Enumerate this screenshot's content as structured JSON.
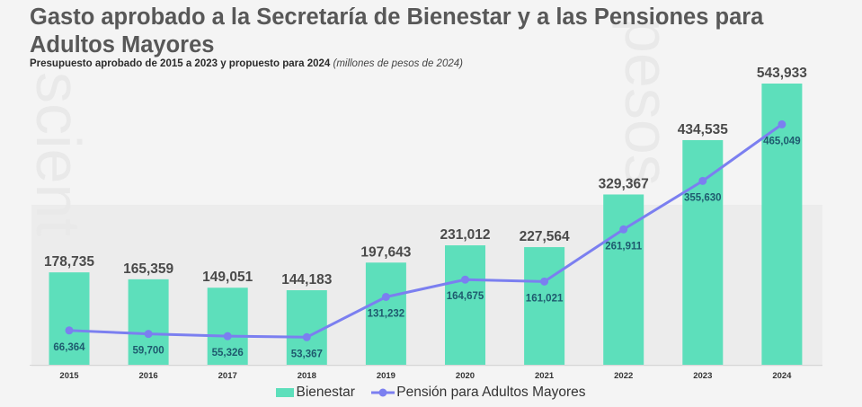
{
  "header": {
    "title": "Gasto aprobado a la Secretaría de Bienestar y a las Pensiones para Adultos Mayores",
    "subtitle_bold": "Presupuesto aprobado de 2015 a 2023 y propuesto para 2024",
    "subtitle_italic": "(millones de pesos de 2024)"
  },
  "colors": {
    "bar": "#5ddfbb",
    "line": "#7b7ff0",
    "bar_label": "#4a4a4a",
    "line_label": "#1e5a6e"
  },
  "chart_data": {
    "type": "bar",
    "title": "Gasto aprobado a la Secretaría de Bienestar y a las Pensiones para Adultos Mayores",
    "subtitle": "Presupuesto aprobado de 2015 a 2023 y propuesto para 2024 (millones de pesos de 2024)",
    "xlabel": "",
    "ylabel": "",
    "ylim": [
      0,
      543933
    ],
    "grid": false,
    "legend_position": "bottom",
    "categories": [
      "2015",
      "2016",
      "2017",
      "2018",
      "2019",
      "2020",
      "2021",
      "2022",
      "2023",
      "2024"
    ],
    "series": [
      {
        "name": "Bienestar",
        "type": "bar",
        "values": [
          178735,
          165359,
          149051,
          144183,
          197643,
          231012,
          227564,
          329367,
          434535,
          543933
        ],
        "labels": [
          "178,735",
          "165,359",
          "149,051",
          "144,183",
          "197,643",
          "231,012",
          "227,564",
          "329,367",
          "434,535",
          "543,933"
        ]
      },
      {
        "name": "Pensión para Adultos Mayores",
        "type": "line",
        "values": [
          66364,
          59700,
          55326,
          53367,
          131232,
          164675,
          161021,
          261911,
          355630,
          465049
        ],
        "labels": [
          "66,364",
          "59,700",
          "55,326",
          "53,367",
          "131,232",
          "164,675",
          "161,021",
          "261,911",
          "355,630",
          "465,049"
        ]
      }
    ]
  },
  "legend": {
    "bar_label": "Bienestar",
    "line_label": "Pensión para Adultos Mayores"
  }
}
